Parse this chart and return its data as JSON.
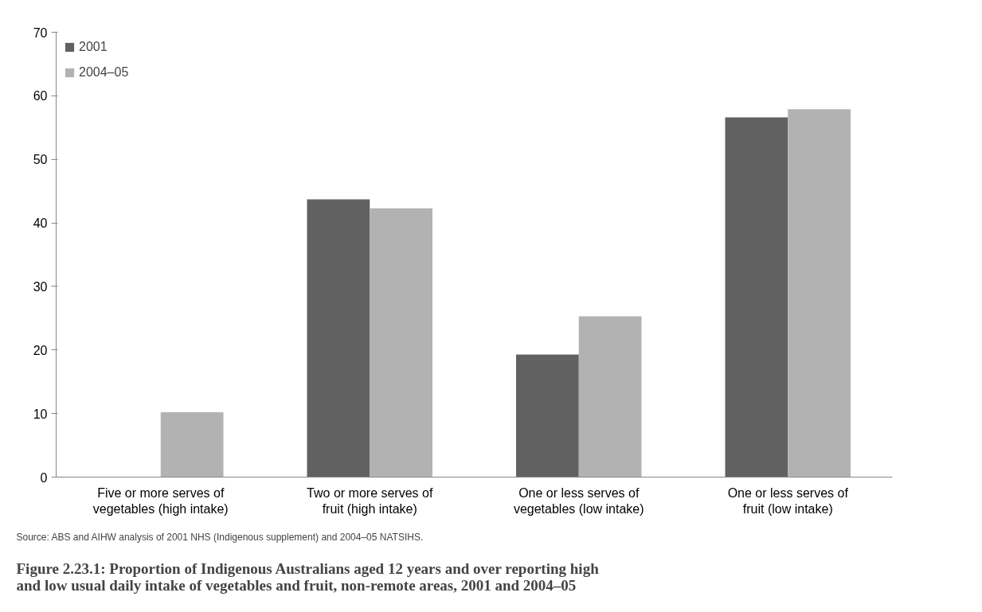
{
  "chart_data": {
    "type": "bar",
    "title": "Figure 2.23.1: Proportion of Indigenous Australians aged 12 years and over reporting high and low usual daily intake of vegetables and fruit, non-remote areas, 2001 and 2004–05",
    "categories": [
      "Five or more serves of vegetables (high intake)",
      "Two or more serves of fruit (high intake)",
      "One or less serves of vegetables (low intake)",
      "One or less serves of fruit (low intake)"
    ],
    "series": [
      {
        "name": "2001",
        "color": "#616161",
        "values": [
          null,
          43.7,
          19.3,
          56.6
        ]
      },
      {
        "name": "2004–05",
        "color": "#b2b2b2",
        "values": [
          10.2,
          42.3,
          25.3,
          57.9
        ]
      }
    ],
    "ylim": [
      0,
      70
    ],
    "yticks": [
      0,
      10,
      20,
      30,
      40,
      50,
      60,
      70
    ],
    "grid": false,
    "legend": "top left",
    "annotations": [
      "Source: ABS and AIHW analysis of 2001 NHS (Indigenous supplement) and 2004–05 NATSIHS."
    ]
  }
}
